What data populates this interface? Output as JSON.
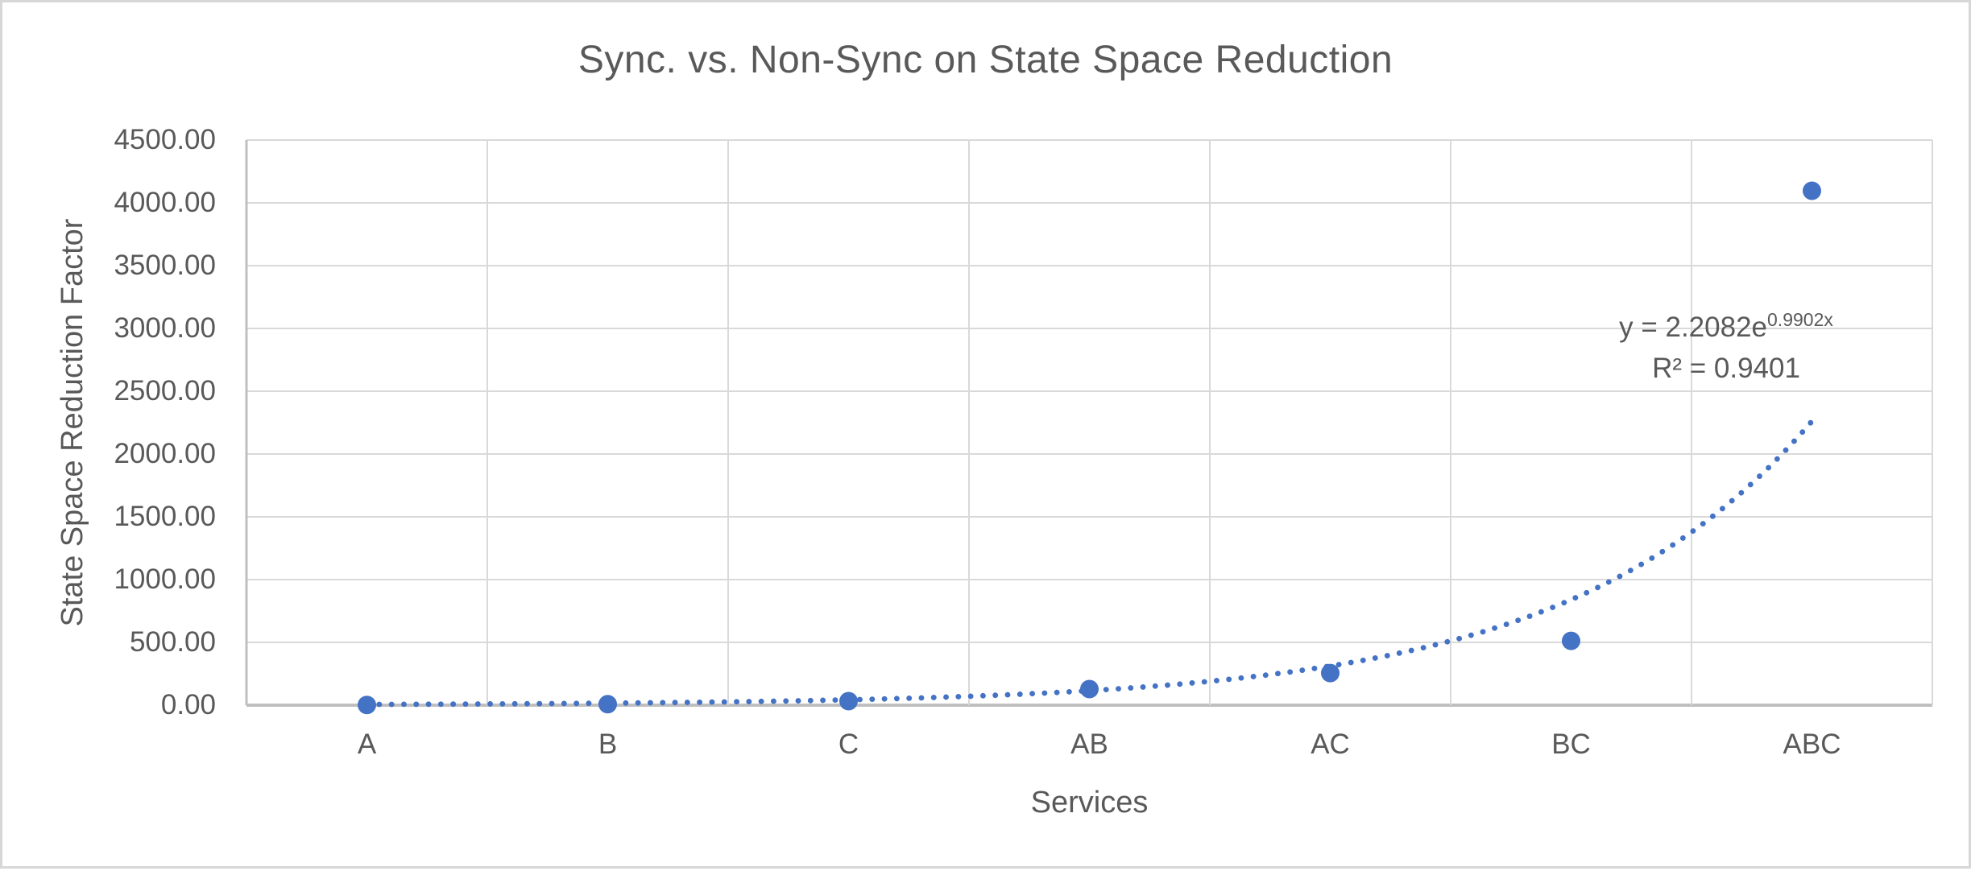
{
  "window": {
    "background": "#ffffff",
    "frame_border_color": "#d7d7d7"
  },
  "chart": {
    "title": "Sync. vs. Non-Sync on State Space Reduction",
    "axes": {
      "y_title": "State Space Reduction Factor",
      "x_title": "Services"
    },
    "trendline_label": {
      "base": "y = 2.2082e",
      "exponent": "0.9902x",
      "r_squared": "R² = 0.9401"
    }
  },
  "chart_data": {
    "type": "scatter",
    "title": "Sync. vs. Non-Sync on State Space Reduction",
    "xlabel": "Services",
    "ylabel": "State Space Reduction Factor",
    "categories": [
      "A",
      "B",
      "C",
      "AB",
      "AC",
      "BC",
      "ABC"
    ],
    "series": [
      {
        "name": "State Space Reduction Factor",
        "values": [
          2,
          8,
          32,
          128,
          256,
          512,
          4096
        ]
      }
    ],
    "ylim": [
      0,
      4500
    ],
    "y_tick_interval": 500,
    "y_tick_labels": [
      "0.00",
      "500.00",
      "1000.00",
      "1500.00",
      "2000.00",
      "2500.00",
      "3000.00",
      "3500.00",
      "4000.00",
      "4500.00"
    ],
    "grid": {
      "horizontal": true,
      "vertical": true
    },
    "legend": "none",
    "trendline": {
      "type": "exponential",
      "a": 2.2082,
      "b": 0.9902,
      "equation": "y = 2.2082e^(0.9902x)",
      "r_squared": 0.9401,
      "style": "dotted",
      "x_range": [
        1,
        7
      ]
    },
    "colors": {
      "marker": "#4472C4",
      "trendline": "#4472C4",
      "gridline": "#d9d9d9",
      "axis_line": "#bfbfbf",
      "text": "#595959"
    }
  }
}
